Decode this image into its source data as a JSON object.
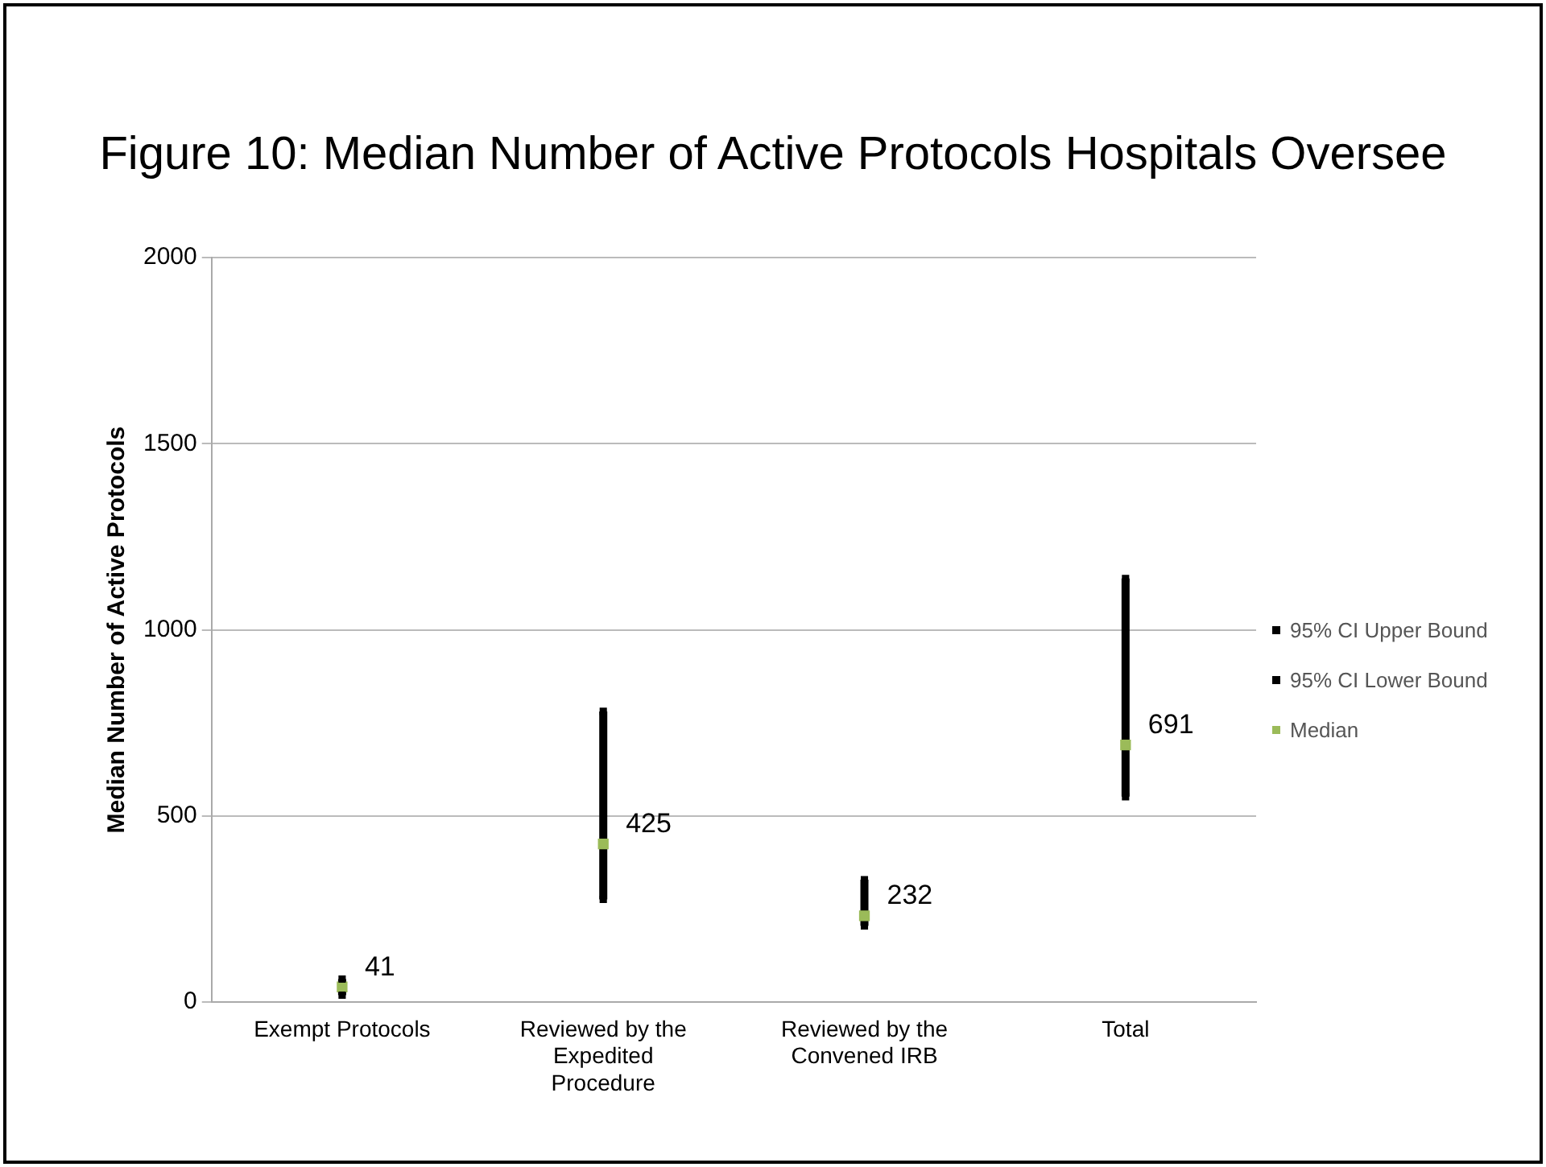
{
  "chart_data": {
    "type": "scatter",
    "title": "Figure 10: Median Number of Active Protocols Hospitals Oversee",
    "ylabel": "Median Number of Active Protocols",
    "categories": [
      "Exempt Protocols",
      "Reviewed by the Expedited Procedure",
      "Reviewed by the Convened IRB",
      "Total"
    ],
    "series": [
      {
        "name": "95% CI Upper Bound",
        "color": "#000000",
        "marker": "square",
        "values": [
          62,
          781,
          329,
          1138
        ]
      },
      {
        "name": "95% CI Lower Bound",
        "color": "#000000",
        "marker": "square",
        "values": [
          19,
          276,
          205,
          552
        ]
      },
      {
        "name": "Median",
        "color": "#9bbb59",
        "marker": "square",
        "values": [
          41,
          425,
          232,
          691
        ],
        "data_labels": true
      }
    ],
    "ylim": [
      0,
      2000
    ],
    "yticks": [
      0,
      500,
      1000,
      1500,
      2000
    ],
    "grid": "y",
    "legend": "right"
  }
}
